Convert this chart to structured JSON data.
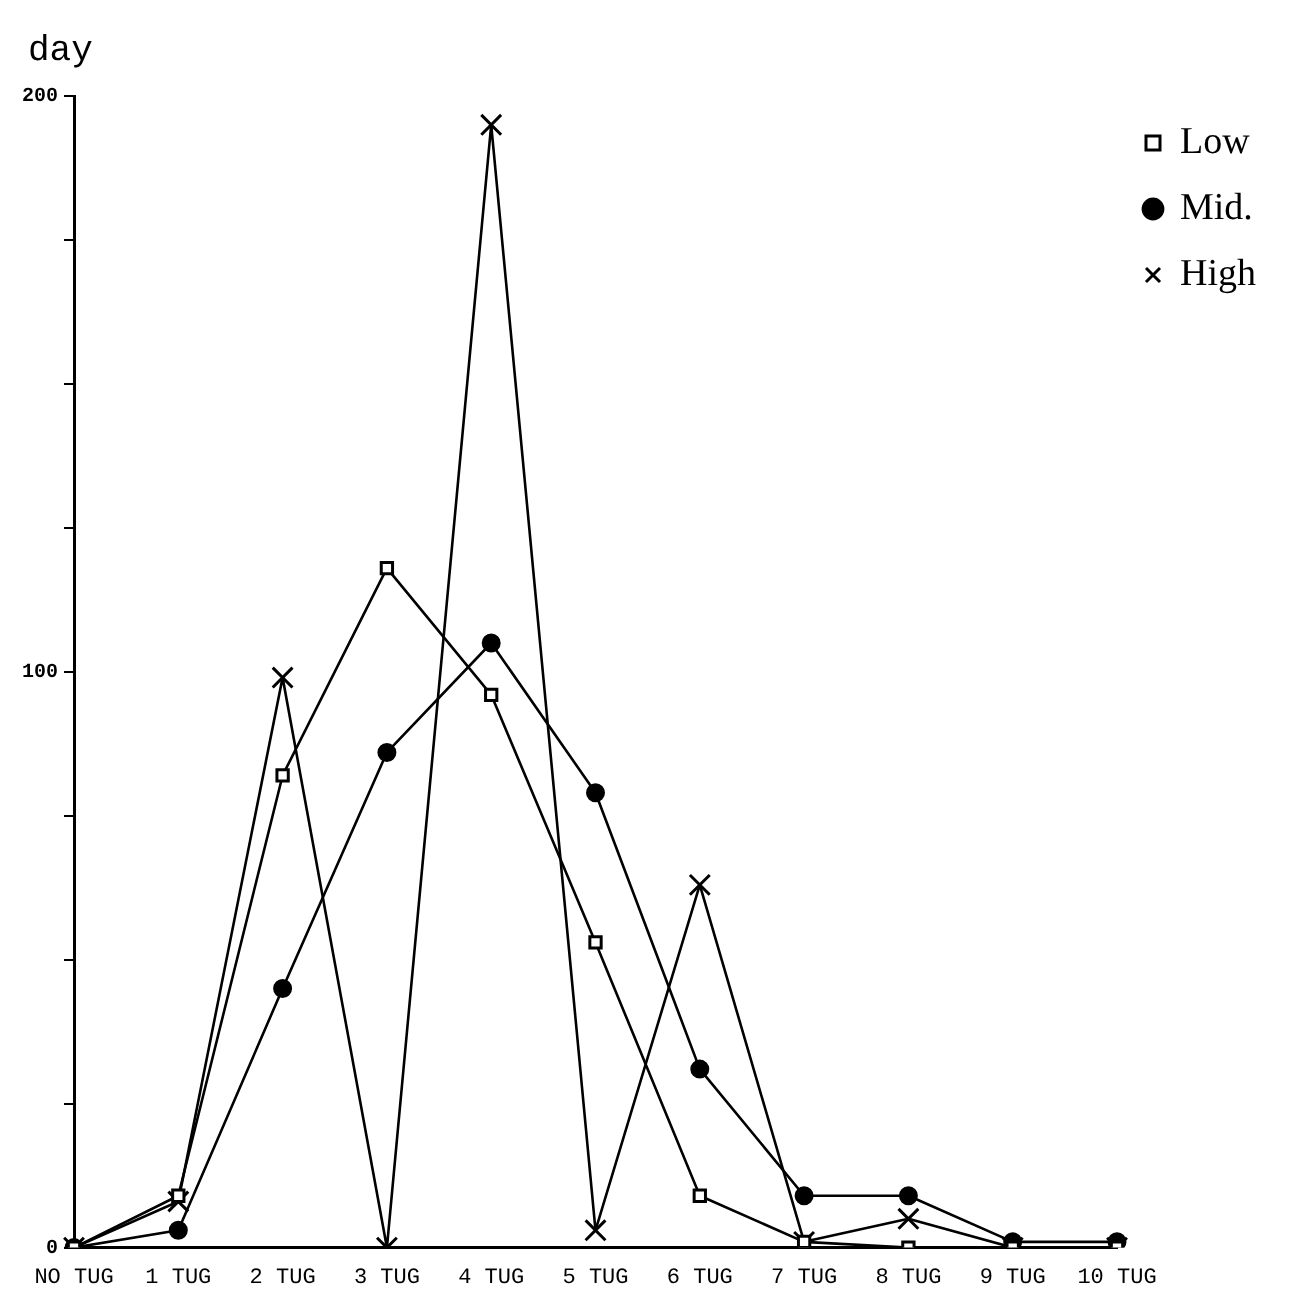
{
  "chart_data": {
    "type": "line",
    "ylabel": "day",
    "categories": [
      "NO TUG",
      "1 TUG",
      "2 TUG",
      "3 TUG",
      "4 TUG",
      "5 TUG",
      "6 TUG",
      "7 TUG",
      "8 TUG",
      "9 TUG",
      "10 TUG"
    ],
    "series": [
      {
        "name": "Low",
        "color": "#000000",
        "marker": "square",
        "values": [
          0,
          9,
          82,
          118,
          96,
          53,
          9,
          1,
          0,
          0,
          0
        ]
      },
      {
        "name": "Mid.",
        "color": "#000000",
        "marker": "circle",
        "values": [
          0,
          3,
          45,
          86,
          105,
          79,
          31,
          9,
          9,
          1,
          1
        ]
      },
      {
        "name": "High",
        "color": "#000000",
        "marker": "cross",
        "values": [
          0,
          8,
          99,
          0,
          195,
          3,
          63,
          1,
          5,
          0,
          0
        ]
      }
    ],
    "ylim": [
      0,
      200
    ],
    "yticks": [
      0,
      {
        "value": 25,
        "label": null
      },
      {
        "value": 50,
        "label": null
      },
      {
        "value": 75,
        "label": null
      },
      100,
      {
        "value": 125,
        "label": null
      },
      {
        "value": 150,
        "label": null
      },
      {
        "value": 175,
        "label": null
      },
      200
    ],
    "grid": false,
    "legend": "top right",
    "line_style": "solid"
  }
}
